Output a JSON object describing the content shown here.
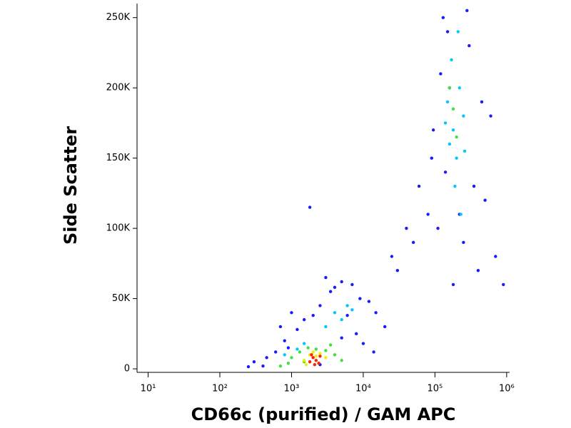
{
  "chart_data": {
    "type": "scatter",
    "x_label": "CD66c (purified) / GAM APC",
    "y_label": "Side Scatter",
    "xscale": "log",
    "xlim": [
      7,
      1100000
    ],
    "ylim": [
      -2000,
      260000
    ],
    "xticks": [
      {
        "value": 10,
        "label": "10¹"
      },
      {
        "value": 100,
        "label": "10²"
      },
      {
        "value": 1000,
        "label": "10³"
      },
      {
        "value": 10000,
        "label": "10⁴"
      },
      {
        "value": 100000,
        "label": "10⁵"
      },
      {
        "value": 1000000,
        "label": "10⁶"
      }
    ],
    "yticks": [
      0,
      {
        "value": 50000,
        "label": "50K"
      },
      {
        "value": 100000,
        "label": "100K"
      },
      {
        "value": 150000,
        "label": "150K"
      },
      {
        "value": 200000,
        "label": "200K"
      },
      {
        "value": 250000,
        "label": "250K"
      }
    ],
    "series": [
      {
        "color": "#1a1aff",
        "x": [
          300,
          450,
          600,
          800,
          1200,
          1500,
          2500,
          3500,
          5000,
          7000,
          9000,
          12000,
          15000,
          20000,
          3000,
          4000,
          6000,
          8000,
          10000,
          2500,
          700,
          900,
          400,
          250,
          30000,
          50000,
          80000,
          60000,
          40000,
          25000,
          90000,
          120000,
          150000,
          300000,
          450000,
          500000,
          700000,
          900000,
          110000,
          95000,
          130000,
          250000,
          350000,
          180000,
          220000,
          160000,
          140000,
          400000,
          280000,
          600000,
          1000,
          2000,
          5000,
          1800,
          14000
        ],
        "y": [
          5000,
          8000,
          12000,
          20000,
          28000,
          35000,
          45000,
          55000,
          62000,
          60000,
          50000,
          48000,
          40000,
          30000,
          65000,
          58000,
          38000,
          25000,
          18000,
          3000,
          30000,
          15000,
          2000,
          1500,
          70000,
          90000,
          110000,
          130000,
          100000,
          80000,
          150000,
          210000,
          240000,
          230000,
          190000,
          120000,
          80000,
          60000,
          100000,
          170000,
          250000,
          90000,
          130000,
          60000,
          110000,
          200000,
          140000,
          70000,
          255000,
          180000,
          40000,
          38000,
          22000,
          115000,
          12000
        ]
      },
      {
        "color": "#00c8ff",
        "x": [
          150000,
          180000,
          200000,
          220000,
          170000,
          190000,
          250000,
          160000,
          210000,
          230000,
          140000,
          260000,
          4000,
          5000,
          6000,
          3000,
          7000,
          1200,
          1500,
          800
        ],
        "y": [
          190000,
          170000,
          150000,
          200000,
          220000,
          130000,
          180000,
          160000,
          240000,
          110000,
          175000,
          155000,
          40000,
          35000,
          45000,
          30000,
          42000,
          14000,
          18000,
          10000
        ]
      },
      {
        "color": "#40e040",
        "x": [
          1000,
          1300,
          1700,
          2200,
          3000,
          4000,
          900,
          1500,
          180000,
          200000,
          160000,
          5000,
          700,
          3500
        ],
        "y": [
          8000,
          12000,
          15000,
          14000,
          13000,
          10000,
          4000,
          5000,
          185000,
          165000,
          200000,
          6000,
          2000,
          17000
        ]
      },
      {
        "color": "#f0f000",
        "x": [
          1500,
          1800,
          2000,
          2500,
          3000,
          1600,
          2200
        ],
        "y": [
          6000,
          10000,
          12000,
          11000,
          8000,
          3000,
          9000
        ]
      },
      {
        "color": "#ff2000",
        "x": [
          1800,
          2000,
          2200,
          2500,
          2100,
          2400,
          1900
        ],
        "y": [
          5000,
          8000,
          6000,
          9000,
          3000,
          4000,
          10000
        ]
      }
    ]
  }
}
